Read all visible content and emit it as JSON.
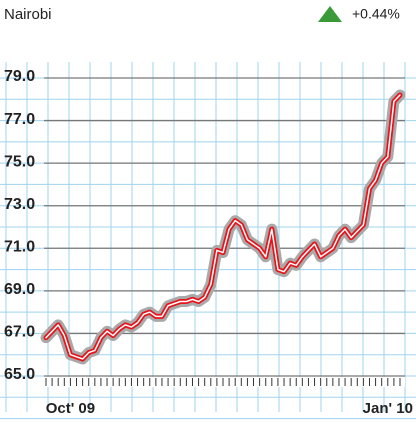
{
  "header": {
    "market": "Nairobi",
    "change": "+0.44%"
  },
  "chart_data": {
    "type": "line",
    "categories": [
      null,
      null,
      null,
      null,
      "Oct' 09",
      null,
      null,
      null,
      null,
      null,
      null,
      null,
      null,
      null,
      null,
      null,
      null,
      null,
      null,
      null,
      null,
      null,
      null,
      null,
      null,
      null,
      null,
      null,
      null,
      null,
      null,
      null,
      null,
      null,
      null,
      null,
      null,
      null,
      null,
      null,
      null,
      null,
      null,
      null,
      null,
      null,
      null,
      null,
      null,
      null,
      null,
      null,
      null,
      null,
      null,
      null,
      "Jan' 10",
      null,
      null
    ],
    "series": [
      {
        "name": "Nairobi",
        "color": "#e8141c",
        "values": [
          66.8,
          67.1,
          67.4,
          66.9,
          66.0,
          65.9,
          65.8,
          66.1,
          66.2,
          66.8,
          67.1,
          66.9,
          67.2,
          67.4,
          67.3,
          67.5,
          67.9,
          68.0,
          67.8,
          67.8,
          68.3,
          68.4,
          68.5,
          68.5,
          68.6,
          68.5,
          68.7,
          69.3,
          70.9,
          70.8,
          71.9,
          72.3,
          72.1,
          71.4,
          71.2,
          71.0,
          70.6,
          71.9,
          70.0,
          69.9,
          70.3,
          70.2,
          70.6,
          70.9,
          71.2,
          70.6,
          70.8,
          71.0,
          71.6,
          71.9,
          71.5,
          71.8,
          72.1,
          73.8,
          74.2,
          75.0,
          75.3,
          77.9,
          78.2
        ]
      }
    ],
    "ylim": [
      65,
      79
    ],
    "yticks": [
      {
        "value": 65,
        "label": "65.0"
      },
      {
        "value": 67,
        "label": "67.0"
      },
      {
        "value": 69,
        "label": "69.0"
      },
      {
        "value": 71,
        "label": "71.0"
      },
      {
        "value": 73,
        "label": "73.0"
      },
      {
        "value": 75,
        "label": "75.0"
      },
      {
        "value": 77,
        "label": "77.0"
      },
      {
        "value": 79,
        "label": "79.0"
      }
    ],
    "grid": true
  }
}
